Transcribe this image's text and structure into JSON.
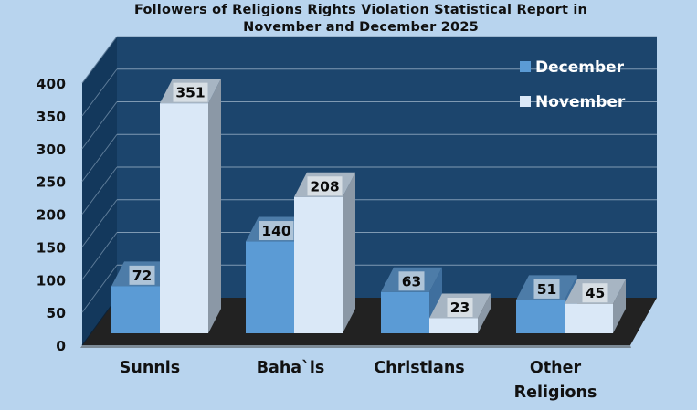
{
  "chart_data": {
    "type": "bar",
    "title": [
      "Followers of Religions Rights Violation Statistical Report in",
      "November and December 2025"
    ],
    "xlabel": "",
    "ylabel": "",
    "categories": [
      "Sunnis",
      "Baha`is",
      "Christians",
      "Other Religions"
    ],
    "category_lines": [
      [
        "Sunnis"
      ],
      [
        "Baha`is"
      ],
      [
        "Christians"
      ],
      [
        "Other",
        "Religions"
      ]
    ],
    "series": [
      {
        "name": "December",
        "values": [
          72,
          140,
          63,
          51
        ]
      },
      {
        "name": "November",
        "values": [
          351,
          208,
          23,
          45
        ]
      }
    ],
    "ylim": [
      0,
      400
    ],
    "yticks": [
      0,
      50,
      100,
      150,
      200,
      250,
      300,
      350,
      400
    ],
    "grid": true,
    "legend": "top-right",
    "data_labels": true,
    "colors": {
      "December": "#5b9bd5",
      "November": "#dae8f7",
      "wall": "#1c456d",
      "floor": "#222222",
      "background": "#b8d4ee"
    }
  }
}
